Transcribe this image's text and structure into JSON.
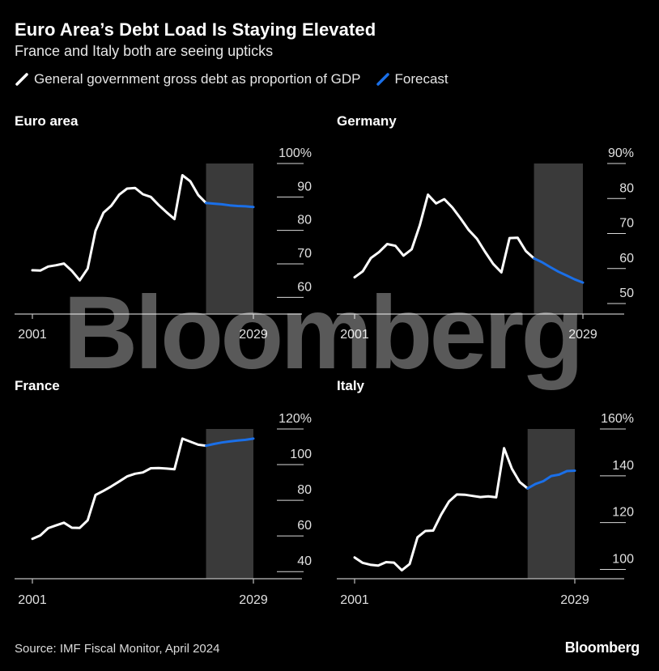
{
  "title": "Euro Area’s Debt Load Is Staying Elevated",
  "subtitle": "France and Italy both are seeing upticks",
  "legend": {
    "actual": "General government gross debt as proportion of GDP",
    "forecast": "Forecast"
  },
  "colors": {
    "actual": "#ffffff",
    "forecast": "#1a6fe8",
    "forecast_band": "#3a3a3a",
    "axis": "#bfbfbf",
    "grid": "#ffffff"
  },
  "source": "Source: IMF Fiscal Monitor, April 2024",
  "brand": "Bloomberg",
  "watermark": "Bloomberg",
  "chart_data": [
    {
      "type": "line",
      "title": "Euro area",
      "x_start": 2001,
      "x_end": 2029,
      "x_tick_labels": [
        "2001",
        "2029"
      ],
      "forecast_start": 2023,
      "ylim": [
        55,
        100
      ],
      "y_ticks": [
        60,
        70,
        80,
        90,
        100
      ],
      "y_tick_labels": [
        "60",
        "70",
        "80",
        "90",
        "100%"
      ],
      "series": [
        {
          "role": "actual",
          "x": [
            2001,
            2002,
            2003,
            2004,
            2005,
            2006,
            2007,
            2008,
            2009,
            2010,
            2011,
            2012,
            2013,
            2014,
            2015,
            2016,
            2017,
            2018,
            2019,
            2020,
            2021,
            2022,
            2023
          ],
          "values": [
            68.1,
            68.0,
            69.2,
            69.6,
            70.1,
            67.9,
            65.1,
            68.6,
            79.9,
            85.3,
            87.4,
            90.7,
            92.5,
            92.7,
            90.8,
            90.0,
            87.6,
            85.4,
            83.4,
            96.5,
            94.7,
            90.6,
            88.2
          ]
        },
        {
          "role": "forecast",
          "x": [
            2023,
            2024,
            2025,
            2026,
            2027,
            2028,
            2029
          ],
          "values": [
            88.2,
            88.0,
            87.8,
            87.5,
            87.3,
            87.2,
            87.0
          ]
        }
      ]
    },
    {
      "type": "line",
      "title": "Germany",
      "x_start": 2001,
      "x_end": 2029,
      "x_tick_labels": [
        "2001",
        "2029"
      ],
      "forecast_start": 2023,
      "ylim": [
        47,
        90
      ],
      "y_ticks": [
        50,
        60,
        70,
        80,
        90
      ],
      "y_tick_labels": [
        "50",
        "60",
        "70",
        "80",
        "90%"
      ],
      "series": [
        {
          "role": "actual",
          "x": [
            2001,
            2002,
            2003,
            2004,
            2005,
            2006,
            2007,
            2008,
            2009,
            2010,
            2011,
            2012,
            2013,
            2014,
            2015,
            2016,
            2017,
            2018,
            2019,
            2020,
            2021,
            2022,
            2023
          ],
          "values": [
            57.5,
            59.2,
            63.0,
            64.7,
            67.0,
            66.5,
            63.7,
            65.5,
            72.4,
            81.1,
            78.6,
            79.8,
            77.4,
            74.3,
            71.0,
            68.5,
            64.8,
            61.3,
            58.9,
            68.7,
            68.8,
            65.0,
            62.9
          ]
        },
        {
          "role": "forecast",
          "x": [
            2023,
            2024,
            2025,
            2026,
            2027,
            2028,
            2029
          ],
          "values": [
            62.9,
            61.8,
            60.4,
            59.1,
            58.0,
            56.9,
            56.0
          ]
        }
      ]
    },
    {
      "type": "line",
      "title": "France",
      "x_start": 2001,
      "x_end": 2029,
      "x_tick_labels": [
        "2001",
        "2029"
      ],
      "forecast_start": 2023,
      "ylim": [
        36,
        120
      ],
      "y_ticks": [
        40,
        60,
        80,
        100,
        120
      ],
      "y_tick_labels": [
        "40",
        "60",
        "80",
        "100",
        "120%"
      ],
      "series": [
        {
          "role": "actual",
          "x": [
            2001,
            2002,
            2003,
            2004,
            2005,
            2006,
            2007,
            2008,
            2009,
            2010,
            2011,
            2012,
            2013,
            2014,
            2015,
            2016,
            2017,
            2018,
            2019,
            2020,
            2021,
            2022,
            2023
          ],
          "values": [
            58.4,
            60.3,
            64.4,
            65.9,
            67.4,
            64.6,
            64.5,
            68.8,
            83.0,
            85.3,
            87.8,
            90.6,
            93.4,
            94.9,
            95.6,
            98.0,
            98.1,
            97.8,
            97.4,
            114.6,
            112.9,
            111.2,
            110.6
          ]
        },
        {
          "role": "forecast",
          "x": [
            2023,
            2024,
            2025,
            2026,
            2027,
            2028,
            2029
          ],
          "values": [
            110.6,
            111.6,
            112.4,
            113.0,
            113.5,
            113.9,
            114.6
          ]
        }
      ]
    },
    {
      "type": "line",
      "title": "Italy",
      "x_start": 2001,
      "x_end": 2029,
      "x_tick_labels": [
        "2001",
        "2029"
      ],
      "forecast_start": 2023,
      "ylim": [
        96,
        160
      ],
      "y_ticks": [
        100,
        120,
        140,
        160
      ],
      "y_tick_labels": [
        "100",
        "120",
        "140",
        "160%"
      ],
      "series": [
        {
          "role": "actual",
          "x": [
            2001,
            2002,
            2003,
            2004,
            2005,
            2006,
            2007,
            2008,
            2009,
            2010,
            2011,
            2012,
            2013,
            2014,
            2015,
            2016,
            2017,
            2018,
            2019,
            2020,
            2021,
            2022,
            2023
          ],
          "values": [
            105.1,
            102.8,
            102.0,
            101.6,
            103.1,
            102.9,
            99.6,
            102.3,
            113.7,
            116.4,
            116.6,
            123.4,
            129.0,
            132.0,
            131.9,
            131.4,
            130.9,
            131.2,
            130.8,
            151.8,
            143.0,
            137.3,
            134.6
          ]
        },
        {
          "role": "forecast",
          "x": [
            2023,
            2024,
            2025,
            2026,
            2027,
            2028,
            2029
          ],
          "values": [
            134.6,
            136.5,
            137.7,
            139.9,
            140.5,
            142.0,
            142.2
          ]
        }
      ]
    }
  ]
}
